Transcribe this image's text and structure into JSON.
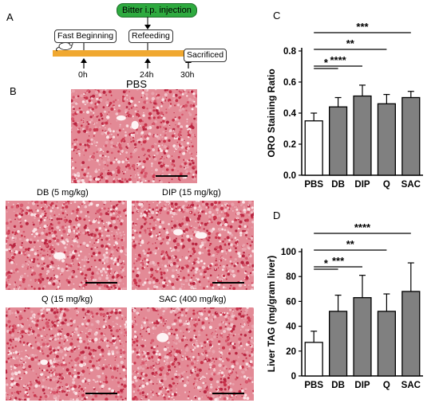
{
  "panels": {
    "a": "A",
    "b": "B",
    "c": "C",
    "d": "D"
  },
  "timeline": {
    "injection": "Bitter i.p. injection",
    "fast": "Fast Beginning",
    "refeed": "Refeeding",
    "sacrificed": "Sacrificed",
    "times": [
      "0h",
      "24h",
      "30h"
    ]
  },
  "histology": {
    "pbs": "PBS",
    "db": "DB (5 mg/kg)",
    "dip": "DIP (15 mg/kg)",
    "q": "Q (15 mg/kg)",
    "sac": "SAC (400 mg/kg)"
  },
  "colors": {
    "tissue": "#d5576b",
    "bar_pbs": "#ffffff",
    "bar_treat": "#808080",
    "timeline": "#f0a830",
    "injection_box": "#2eaa3f"
  },
  "chart_data": [
    {
      "type": "bar",
      "panel": "C",
      "categories": [
        "PBS",
        "DB",
        "DIP",
        "Q",
        "SAC"
      ],
      "values": [
        0.35,
        0.44,
        0.51,
        0.46,
        0.5
      ],
      "errors": [
        0.05,
        0.06,
        0.07,
        0.06,
        0.04
      ],
      "ylabel": "ORO Staining Ratio",
      "ylim": [
        0.0,
        0.8
      ],
      "yticks": [
        "0.0",
        "0.2",
        "0.4",
        "0.6",
        "0.8"
      ],
      "significance": [
        {
          "to": "DB",
          "label": "*"
        },
        {
          "to": "DIP",
          "label": "****"
        },
        {
          "to": "Q",
          "label": "**"
        },
        {
          "to": "SAC",
          "label": "***"
        }
      ]
    },
    {
      "type": "bar",
      "panel": "D",
      "categories": [
        "PBS",
        "DB",
        "DIP",
        "Q",
        "SAC"
      ],
      "values": [
        27,
        52,
        63,
        52,
        68
      ],
      "errors": [
        9,
        13,
        18,
        14,
        23
      ],
      "ylabel": "Liver TAG (mg/gram liver)",
      "ylim": [
        0,
        100
      ],
      "yticks": [
        "0",
        "20",
        "40",
        "60",
        "80",
        "100"
      ],
      "significance": [
        {
          "to": "DB",
          "label": "*"
        },
        {
          "to": "DIP",
          "label": "***"
        },
        {
          "to": "Q",
          "label": "**"
        },
        {
          "to": "SAC",
          "label": "****"
        }
      ]
    }
  ]
}
